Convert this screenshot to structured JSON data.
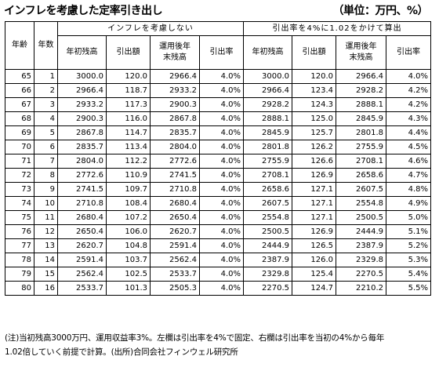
{
  "title": "インフレを考慮した定率引き出し",
  "unit": "（単位：万円、%）",
  "groups": {
    "left": "インフレを考慮しない",
    "right": "引出率を4%に1.02をかけて算出"
  },
  "columns": {
    "age": "年齢",
    "years": "年数",
    "start_balance": "年初残高",
    "withdrawal": "引出額",
    "end_balance_line1": "運用後年",
    "end_balance_line2": "末残高",
    "rate": "引出率"
  },
  "rows": [
    [
      "65",
      "1",
      "3000.0",
      "120.0",
      "2966.4",
      "4.0%",
      "3000.0",
      "120.0",
      "2966.4",
      "4.0%"
    ],
    [
      "66",
      "2",
      "2966.4",
      "118.7",
      "2933.2",
      "4.0%",
      "2966.4",
      "123.4",
      "2928.2",
      "4.2%"
    ],
    [
      "67",
      "3",
      "2933.2",
      "117.3",
      "2900.3",
      "4.0%",
      "2928.2",
      "124.3",
      "2888.1",
      "4.2%"
    ],
    [
      "68",
      "4",
      "2900.3",
      "116.0",
      "2867.8",
      "4.0%",
      "2888.1",
      "125.0",
      "2845.9",
      "4.3%"
    ],
    [
      "69",
      "5",
      "2867.8",
      "114.7",
      "2835.7",
      "4.0%",
      "2845.9",
      "125.7",
      "2801.8",
      "4.4%"
    ],
    [
      "70",
      "6",
      "2835.7",
      "113.4",
      "2804.0",
      "4.0%",
      "2801.8",
      "126.2",
      "2755.9",
      "4.5%"
    ],
    [
      "71",
      "7",
      "2804.0",
      "112.2",
      "2772.6",
      "4.0%",
      "2755.9",
      "126.6",
      "2708.1",
      "4.6%"
    ],
    [
      "72",
      "8",
      "2772.6",
      "110.9",
      "2741.5",
      "4.0%",
      "2708.1",
      "126.9",
      "2658.6",
      "4.7%"
    ],
    [
      "73",
      "9",
      "2741.5",
      "109.7",
      "2710.8",
      "4.0%",
      "2658.6",
      "127.1",
      "2607.5",
      "4.8%"
    ],
    [
      "74",
      "10",
      "2710.8",
      "108.4",
      "2680.4",
      "4.0%",
      "2607.5",
      "127.1",
      "2554.8",
      "4.9%"
    ],
    [
      "75",
      "11",
      "2680.4",
      "107.2",
      "2650.4",
      "4.0%",
      "2554.8",
      "127.1",
      "2500.5",
      "5.0%"
    ],
    [
      "76",
      "12",
      "2650.4",
      "106.0",
      "2620.7",
      "4.0%",
      "2500.5",
      "126.9",
      "2444.9",
      "5.1%"
    ],
    [
      "77",
      "13",
      "2620.7",
      "104.8",
      "2591.4",
      "4.0%",
      "2444.9",
      "126.5",
      "2387.9",
      "5.2%"
    ],
    [
      "78",
      "14",
      "2591.4",
      "103.7",
      "2562.4",
      "4.0%",
      "2387.9",
      "126.0",
      "2329.8",
      "5.3%"
    ],
    [
      "79",
      "15",
      "2562.4",
      "102.5",
      "2533.7",
      "4.0%",
      "2329.8",
      "125.4",
      "2270.5",
      "5.4%"
    ],
    [
      "80",
      "16",
      "2533.7",
      "101.3",
      "2505.3",
      "4.0%",
      "2270.5",
      "124.7",
      "2210.2",
      "5.5%"
    ]
  ],
  "note_line1": "(注)当初残高3000万円、運用収益率3%。左欄は引出率を4%で固定、右欄は引出率を当初の4%から毎年",
  "note_line2": "1.02倍していく前提で計算。(出所)合同会社フィンウェル研究所"
}
